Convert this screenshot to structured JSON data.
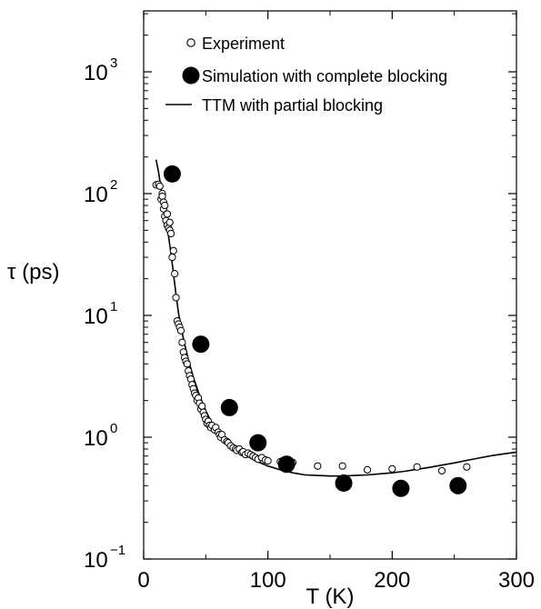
{
  "chart_data": {
    "type": "scatter",
    "title": "",
    "xlabel": "T (K)",
    "ylabel": "τ (ps)",
    "xlim": [
      0,
      300
    ],
    "ylim_log10": [
      -1,
      3.5
    ],
    "y_scale": "log",
    "grid": false,
    "legend_position": "top",
    "x_ticks": [
      {
        "value": 0,
        "label": "0"
      },
      {
        "value": 100,
        "label": "100"
      },
      {
        "value": 200,
        "label": "200"
      },
      {
        "value": 300,
        "label": "300"
      }
    ],
    "y_ticks": [
      {
        "value": 0.1,
        "base": "10",
        "exp": "−1"
      },
      {
        "value": 1,
        "base": "10",
        "exp": "0"
      },
      {
        "value": 10,
        "base": "10",
        "exp": "1"
      },
      {
        "value": 100,
        "base": "10",
        "exp": "2"
      },
      {
        "value": 1000,
        "base": "10",
        "exp": "3"
      }
    ],
    "series": [
      {
        "name": "Experiment",
        "kind": "open-circles",
        "points": [
          [
            10,
            118
          ],
          [
            12,
            119
          ],
          [
            13,
            115
          ],
          [
            14,
            90
          ],
          [
            15,
            100
          ],
          [
            15,
            95
          ],
          [
            16,
            85
          ],
          [
            16,
            75
          ],
          [
            17,
            80
          ],
          [
            17,
            65
          ],
          [
            18,
            60
          ],
          [
            19,
            68
          ],
          [
            19,
            55
          ],
          [
            20,
            52
          ],
          [
            21,
            50
          ],
          [
            21,
            58
          ],
          [
            22,
            47
          ],
          [
            23,
            30
          ],
          [
            24,
            34
          ],
          [
            25,
            22
          ],
          [
            26,
            14
          ],
          [
            27,
            9
          ],
          [
            28,
            8.5
          ],
          [
            29,
            8
          ],
          [
            30,
            7.5
          ],
          [
            31,
            6
          ],
          [
            32,
            5
          ],
          [
            33,
            4.5
          ],
          [
            34,
            4.2
          ],
          [
            35,
            4
          ],
          [
            36,
            3.5
          ],
          [
            37,
            3.2
          ],
          [
            38,
            3
          ],
          [
            39,
            2.7
          ],
          [
            40,
            2.5
          ],
          [
            41,
            2.3
          ],
          [
            42,
            2.2
          ],
          [
            43,
            2
          ],
          [
            44,
            2.1
          ],
          [
            45,
            1.9
          ],
          [
            46,
            1.7
          ],
          [
            47,
            1.8
          ],
          [
            48,
            1.6
          ],
          [
            49,
            1.5
          ],
          [
            50,
            1.4
          ],
          [
            51,
            1.3
          ],
          [
            52,
            1.35
          ],
          [
            53,
            1.25
          ],
          [
            54,
            1.2
          ],
          [
            55,
            1.25
          ],
          [
            57,
            1.15
          ],
          [
            58,
            1.2
          ],
          [
            60,
            1.1
          ],
          [
            61,
            1.05
          ],
          [
            62,
            1.0
          ],
          [
            63,
            1.05
          ],
          [
            65,
            0.95
          ],
          [
            67,
            0.92
          ],
          [
            68,
            0.9
          ],
          [
            70,
            0.85
          ],
          [
            72,
            0.82
          ],
          [
            74,
            0.8
          ],
          [
            75,
            0.78
          ],
          [
            77,
            0.8
          ],
          [
            79,
            0.75
          ],
          [
            80,
            0.76
          ],
          [
            82,
            0.72
          ],
          [
            84,
            0.74
          ],
          [
            86,
            0.72
          ],
          [
            88,
            0.7
          ],
          [
            90,
            0.68
          ],
          [
            92,
            0.66
          ],
          [
            95,
            0.68
          ],
          [
            98,
            0.65
          ],
          [
            100,
            0.64
          ],
          [
            110,
            0.63
          ],
          [
            120,
            0.62
          ],
          [
            140,
            0.58
          ],
          [
            160,
            0.58
          ],
          [
            180,
            0.54
          ],
          [
            200,
            0.55
          ],
          [
            220,
            0.57
          ],
          [
            240,
            0.53
          ],
          [
            260,
            0.57
          ]
        ]
      },
      {
        "name": "Simulation with complete blocking",
        "kind": "filled-circles",
        "points": [
          [
            23,
            145
          ],
          [
            46,
            5.8
          ],
          [
            69,
            1.75
          ],
          [
            92,
            0.9
          ],
          [
            115,
            0.6
          ],
          [
            161,
            0.42
          ],
          [
            207,
            0.38
          ],
          [
            253,
            0.4
          ]
        ]
      },
      {
        "name": "TTM with partial blocking",
        "kind": "line",
        "points": [
          [
            10,
            190
          ],
          [
            12,
            150
          ],
          [
            14,
            110
          ],
          [
            16,
            82
          ],
          [
            18,
            60
          ],
          [
            20,
            45
          ],
          [
            22,
            32
          ],
          [
            24,
            22
          ],
          [
            26,
            15
          ],
          [
            28,
            10.5
          ],
          [
            30,
            8
          ],
          [
            33,
            5.8
          ],
          [
            36,
            4.3
          ],
          [
            40,
            3.1
          ],
          [
            45,
            2.2
          ],
          [
            50,
            1.65
          ],
          [
            55,
            1.3
          ],
          [
            60,
            1.08
          ],
          [
            70,
            0.86
          ],
          [
            80,
            0.73
          ],
          [
            90,
            0.64
          ],
          [
            100,
            0.58
          ],
          [
            110,
            0.54
          ],
          [
            120,
            0.51
          ],
          [
            130,
            0.49
          ],
          [
            140,
            0.485
          ],
          [
            150,
            0.48
          ],
          [
            160,
            0.48
          ],
          [
            170,
            0.485
          ],
          [
            180,
            0.49
          ],
          [
            190,
            0.5
          ],
          [
            200,
            0.51
          ],
          [
            210,
            0.525
          ],
          [
            220,
            0.545
          ],
          [
            230,
            0.565
          ],
          [
            240,
            0.59
          ],
          [
            250,
            0.615
          ],
          [
            260,
            0.645
          ],
          [
            270,
            0.675
          ],
          [
            280,
            0.705
          ],
          [
            290,
            0.73
          ],
          [
            300,
            0.755
          ]
        ]
      }
    ]
  }
}
